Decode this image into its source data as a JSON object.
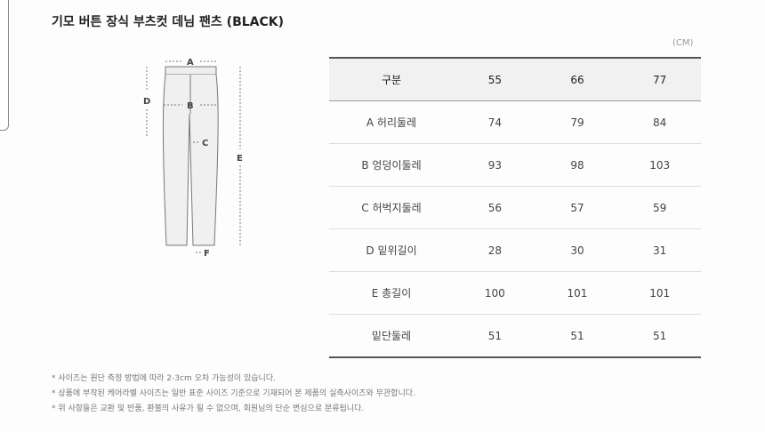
{
  "title": "기모 버튼 장식 부츠컷 데님 팬츠 (BLACK)",
  "unit": "(CM)",
  "diagram_labels": {
    "a": "A",
    "b": "B",
    "c": "C",
    "d": "D",
    "e": "E",
    "f": "F"
  },
  "table": {
    "headers": [
      "구분",
      "55",
      "66",
      "77"
    ],
    "rows": [
      [
        "A 허리둘레",
        "74",
        "79",
        "84"
      ],
      [
        "B 엉덩이둘레",
        "93",
        "98",
        "103"
      ],
      [
        "C 허벅지둘레",
        "56",
        "57",
        "59"
      ],
      [
        "D 밑위길이",
        "28",
        "30",
        "31"
      ],
      [
        "E 총길이",
        "100",
        "101",
        "101"
      ],
      [
        "밑단둘레",
        "51",
        "51",
        "51"
      ]
    ]
  },
  "notes": [
    "* 사이즈는 원단 측정 방법에 따라 2-3cm 오차 가능성이 있습니다.",
    "* 상품에 부착된 케어라벨 사이즈는 일반 표준 사이즈 기준으로 기재되어 본 제품의 실측사이즈와 무관합니다.",
    "* 위 사항들은 교환 및 반품, 환불의 사유가 될 수 없으며, 회원님의 단순 변심으로 분류됩니다."
  ]
}
